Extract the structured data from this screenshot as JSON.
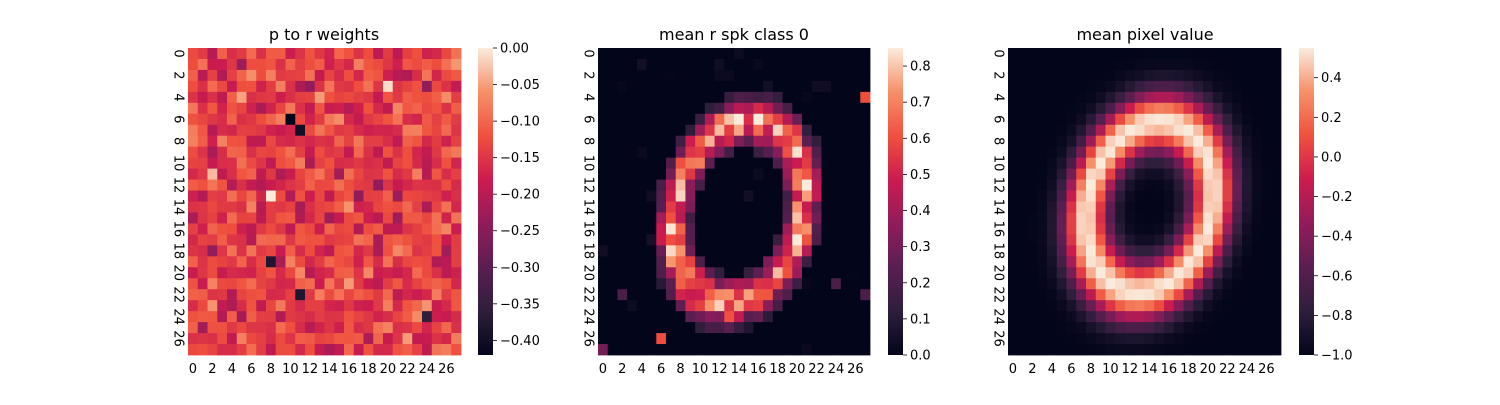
{
  "figure": {
    "panels": [
      {
        "title": "p to r weights",
        "colorbar_ticks": [
          "0.00",
          "−0.05",
          "−0.10",
          "−0.15",
          "−0.20",
          "−0.25",
          "−0.30",
          "−0.35",
          "−0.40"
        ]
      },
      {
        "title": "mean r spk class 0",
        "colorbar_ticks": [
          "0.0",
          "0.1",
          "0.2",
          "0.3",
          "0.4",
          "0.5",
          "0.6",
          "0.7",
          "0.8"
        ]
      },
      {
        "title": "mean pixel value",
        "colorbar_ticks": [
          "0.4",
          "0.2",
          "0.0",
          "−0.2",
          "−0.4",
          "−0.6",
          "−0.8",
          "−1.0"
        ]
      }
    ]
  },
  "chart_data": [
    {
      "type": "heatmap",
      "title": "p to r weights",
      "xlabel": "",
      "ylabel": "",
      "rows": 28,
      "cols": 28,
      "x_ticks": [
        "0",
        "2",
        "4",
        "6",
        "8",
        "10",
        "12",
        "14",
        "16",
        "18",
        "20",
        "22",
        "24",
        "26"
      ],
      "y_ticks": [
        "0",
        "2",
        "4",
        "6",
        "8",
        "10",
        "12",
        "14",
        "16",
        "18",
        "20",
        "22",
        "24",
        "26"
      ],
      "colormap": "rocket",
      "vmin": -0.42,
      "vmax": 0.0,
      "colorbar_ticks": [
        0.0,
        -0.05,
        -0.1,
        -0.15,
        -0.2,
        -0.25,
        -0.3,
        -0.35,
        -0.4
      ],
      "pattern": "random",
      "value_mean": -0.14,
      "value_spread": 0.07,
      "extreme_cells": [
        {
          "row": 6,
          "col": 10,
          "value": -0.42
        },
        {
          "row": 7,
          "col": 11,
          "value": -0.4
        },
        {
          "row": 19,
          "col": 8,
          "value": -0.38
        },
        {
          "row": 22,
          "col": 11,
          "value": -0.38
        },
        {
          "row": 13,
          "col": 8,
          "value": 0.0
        },
        {
          "row": 3,
          "col": 20,
          "value": -0.01
        },
        {
          "row": 24,
          "col": 24,
          "value": -0.36
        }
      ]
    },
    {
      "type": "heatmap",
      "title": "mean r spk class 0",
      "xlabel": "",
      "ylabel": "",
      "rows": 28,
      "cols": 28,
      "x_ticks": [
        "0",
        "2",
        "4",
        "6",
        "8",
        "10",
        "12",
        "14",
        "16",
        "18",
        "20",
        "22",
        "24",
        "26"
      ],
      "y_ticks": [
        "0",
        "2",
        "4",
        "6",
        "8",
        "10",
        "12",
        "14",
        "16",
        "18",
        "20",
        "22",
        "24",
        "26"
      ],
      "colormap": "rocket",
      "vmin": 0.0,
      "vmax": 0.85,
      "colorbar_ticks": [
        0.0,
        0.1,
        0.2,
        0.3,
        0.4,
        0.5,
        0.6,
        0.7,
        0.8
      ],
      "pattern": "ellipse_ring",
      "ring": {
        "center_row": 14.5,
        "center_col": 14.0,
        "radius_rows": 8.5,
        "radius_cols": 6.5,
        "width": 2.0,
        "tilt_deg": 20,
        "peak": 0.8
      },
      "noise": 0.12,
      "extreme_cells": [
        {
          "row": 4,
          "col": 27,
          "value": 0.6
        },
        {
          "row": 26,
          "col": 6,
          "value": 0.6
        },
        {
          "row": 27,
          "col": 0,
          "value": 0.3
        },
        {
          "row": 22,
          "col": 2,
          "value": 0.2
        },
        {
          "row": 21,
          "col": 24,
          "value": 0.2
        },
        {
          "row": 22,
          "col": 27,
          "value": 0.2
        },
        {
          "row": 17,
          "col": 5,
          "value": 0.05
        },
        {
          "row": 17,
          "col": 20,
          "value": 0.85
        },
        {
          "row": 6,
          "col": 16,
          "value": 0.85
        }
      ]
    },
    {
      "type": "heatmap",
      "title": "mean pixel value",
      "xlabel": "",
      "ylabel": "",
      "rows": 28,
      "cols": 28,
      "x_ticks": [
        "0",
        "2",
        "4",
        "6",
        "8",
        "10",
        "12",
        "14",
        "16",
        "18",
        "20",
        "22",
        "24",
        "26"
      ],
      "y_ticks": [
        "0",
        "2",
        "4",
        "6",
        "8",
        "10",
        "12",
        "14",
        "16",
        "18",
        "20",
        "22",
        "24",
        "26"
      ],
      "colormap": "rocket",
      "vmin": -1.0,
      "vmax": 0.55,
      "colorbar_ticks": [
        0.4,
        0.2,
        0.0,
        -0.2,
        -0.4,
        -0.6,
        -0.8,
        -1.0
      ],
      "pattern": "smooth_ellipse_ring",
      "ring": {
        "center_row": 14.0,
        "center_col": 14.0,
        "radius_rows": 8.0,
        "radius_cols": 6.3,
        "width": 2.8,
        "tilt_deg": 22,
        "peak": 0.55
      },
      "background": -1.0
    }
  ]
}
